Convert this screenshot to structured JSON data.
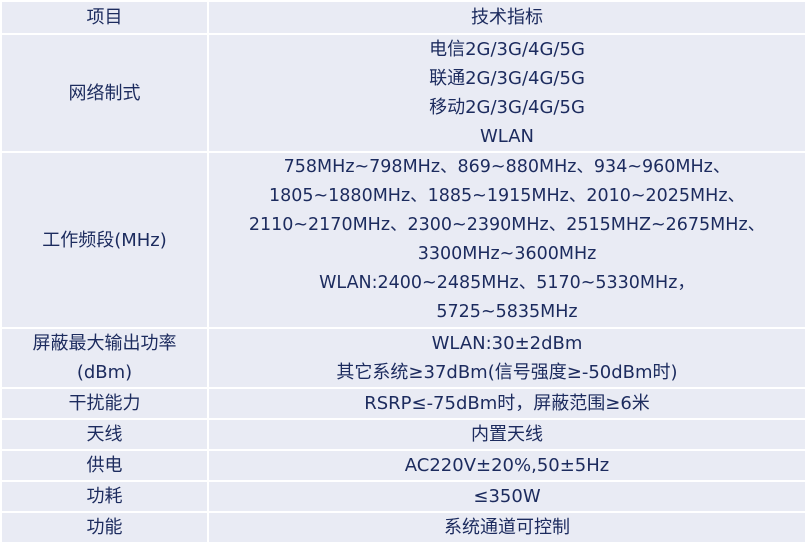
{
  "header": {
    "item": "项目",
    "spec": "技术指标"
  },
  "rows": [
    {
      "item": "网络制式",
      "lines": [
        "电信2G/3G/4G/5G",
        "联通2G/3G/4G/5G",
        "移动2G/3G/4G/5G",
        "WLAN"
      ]
    },
    {
      "item": "工作频段(MHz)",
      "lines": [
        "758MHz~798MHz、869~880MHz、934~960MHz、",
        "1805~1880MHz、1885~1915MHz、2010~2025MHz、",
        "2110~2170MHz、2300~2390MHz、2515MHZ~2675MHz、",
        "3300MHz~3600MHz",
        "WLAN:2400~2485MHz、5170~5330MHz，",
        "5725~5835MHz"
      ]
    },
    {
      "item_lines": [
        "屏蔽最大输出功率",
        "(dBm)"
      ],
      "lines": [
        "WLAN:30±2dBm",
        "其它系统≥37dBm(信号强度≥-50dBm时)"
      ]
    },
    {
      "item": "干扰能力",
      "lines": [
        "RSRP≤-75dBm时，屏蔽范围≥6米"
      ]
    },
    {
      "item": "天线",
      "lines": [
        "内置天线"
      ]
    },
    {
      "item": "供电",
      "lines": [
        "AC220V±20%,50±5Hz"
      ]
    },
    {
      "item": "功耗",
      "lines": [
        "≤350W"
      ]
    },
    {
      "item": "功能",
      "lines": [
        "系统通道可控制"
      ]
    }
  ]
}
